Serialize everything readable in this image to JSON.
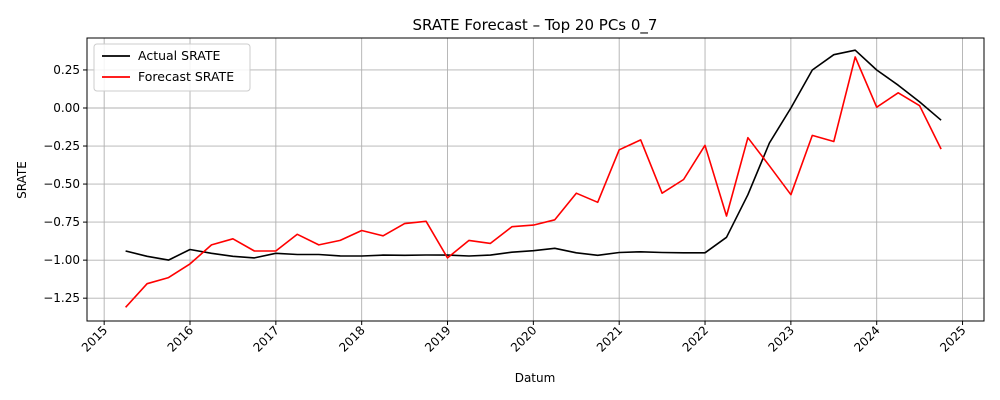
{
  "chart_data": {
    "type": "line",
    "title": "SRATE Forecast – Top 20 PCs 0_7",
    "xlabel": "Datum",
    "ylabel": "SRATE",
    "x_range": [
      2014.8,
      2025.25
    ],
    "ylim": [
      -1.4,
      0.46
    ],
    "grid": true,
    "legend": "top-left",
    "x_ticks": [
      2015,
      2016,
      2017,
      2018,
      2019,
      2020,
      2021,
      2022,
      2023,
      2024,
      2025
    ],
    "x_tick_labels": [
      "2015",
      "2016",
      "2017",
      "2018",
      "2019",
      "2020",
      "2021",
      "2022",
      "2023",
      "2024",
      "2025"
    ],
    "y_ticks": [
      -1.25,
      -1.0,
      -0.75,
      -0.5,
      -0.25,
      0.0,
      0.25
    ],
    "y_tick_labels": [
      "−1.25",
      "−1.00",
      "−0.75",
      "−0.50",
      "−0.25",
      "0.00",
      "0.25"
    ],
    "x": [
      2015.25,
      2015.5,
      2015.75,
      2016.0,
      2016.25,
      2016.5,
      2016.75,
      2017.0,
      2017.25,
      2017.5,
      2017.75,
      2018.0,
      2018.25,
      2018.5,
      2018.75,
      2019.0,
      2019.25,
      2019.5,
      2019.75,
      2020.0,
      2020.25,
      2020.5,
      2020.75,
      2021.0,
      2021.25,
      2021.5,
      2021.75,
      2022.0,
      2022.25,
      2022.5,
      2022.75,
      2023.0,
      2023.25,
      2023.5,
      2023.75,
      2024.0,
      2024.25,
      2024.5,
      2024.75
    ],
    "series": [
      {
        "name": "Actual SRATE",
        "color": "#000000",
        "values": [
          -0.94,
          -0.975,
          -1.0,
          -0.93,
          -0.955,
          -0.975,
          -0.985,
          -0.955,
          -0.963,
          -0.963,
          -0.972,
          -0.973,
          -0.967,
          -0.968,
          -0.966,
          -0.967,
          -0.973,
          -0.967,
          -0.948,
          -0.938,
          -0.922,
          -0.952,
          -0.968,
          -0.95,
          -0.945,
          -0.95,
          -0.952,
          -0.952,
          -0.85,
          -0.57,
          -0.23,
          0.0,
          0.25,
          0.35,
          0.38,
          0.25,
          0.15,
          0.04,
          -0.08
        ]
      },
      {
        "name": "Forecast SRATE",
        "color": "#ff0000",
        "values": [
          -1.31,
          -1.155,
          -1.115,
          -1.025,
          -0.9,
          -0.86,
          -0.94,
          -0.94,
          -0.83,
          -0.9,
          -0.87,
          -0.805,
          -0.84,
          -0.76,
          -0.745,
          -0.985,
          -0.87,
          -0.89,
          -0.78,
          -0.77,
          -0.735,
          -0.56,
          -0.62,
          -0.275,
          -0.21,
          -0.56,
          -0.47,
          -0.245,
          -0.71,
          -0.195,
          -0.38,
          -0.57,
          -0.18,
          -0.22,
          0.335,
          0.005,
          0.1,
          0.015,
          -0.27
        ]
      }
    ]
  }
}
